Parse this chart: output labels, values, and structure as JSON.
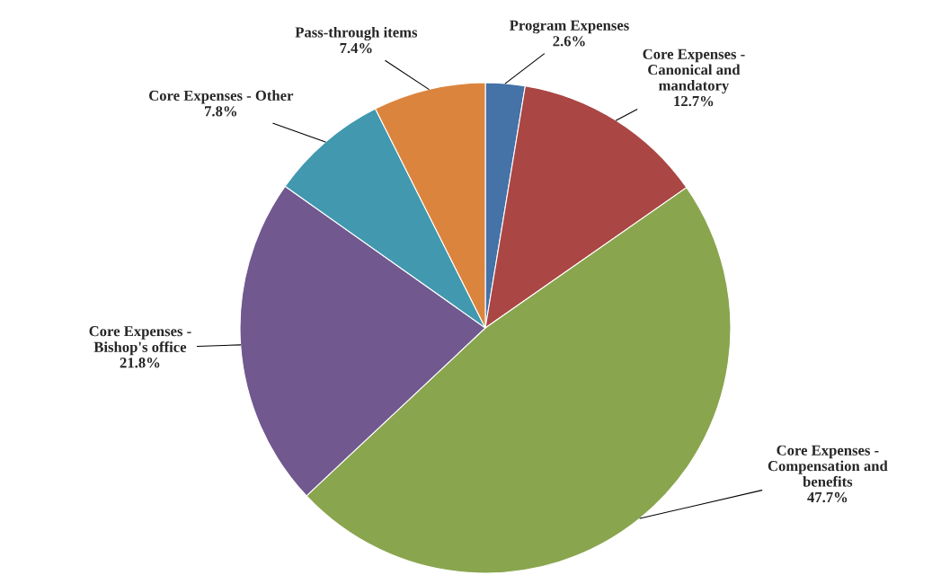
{
  "chart_data": {
    "type": "pie",
    "categories": [
      "Program Expenses",
      "Core Expenses - Canonical and mandatory",
      "Core Expenses - Compensation and benefits",
      "Core Expenses - Bishop's office",
      "Core Expenses - Other",
      "Pass-through items"
    ],
    "values": [
      2.6,
      12.7,
      47.7,
      21.8,
      7.8,
      7.4
    ],
    "colors": [
      "#4572a7",
      "#aa4643",
      "#89a54e",
      "#71588f",
      "#4198af",
      "#db843d"
    ],
    "value_labels": [
      "2.6%",
      "12.7%",
      "47.7%",
      "21.8%",
      "7.8%",
      "7.4%"
    ]
  }
}
